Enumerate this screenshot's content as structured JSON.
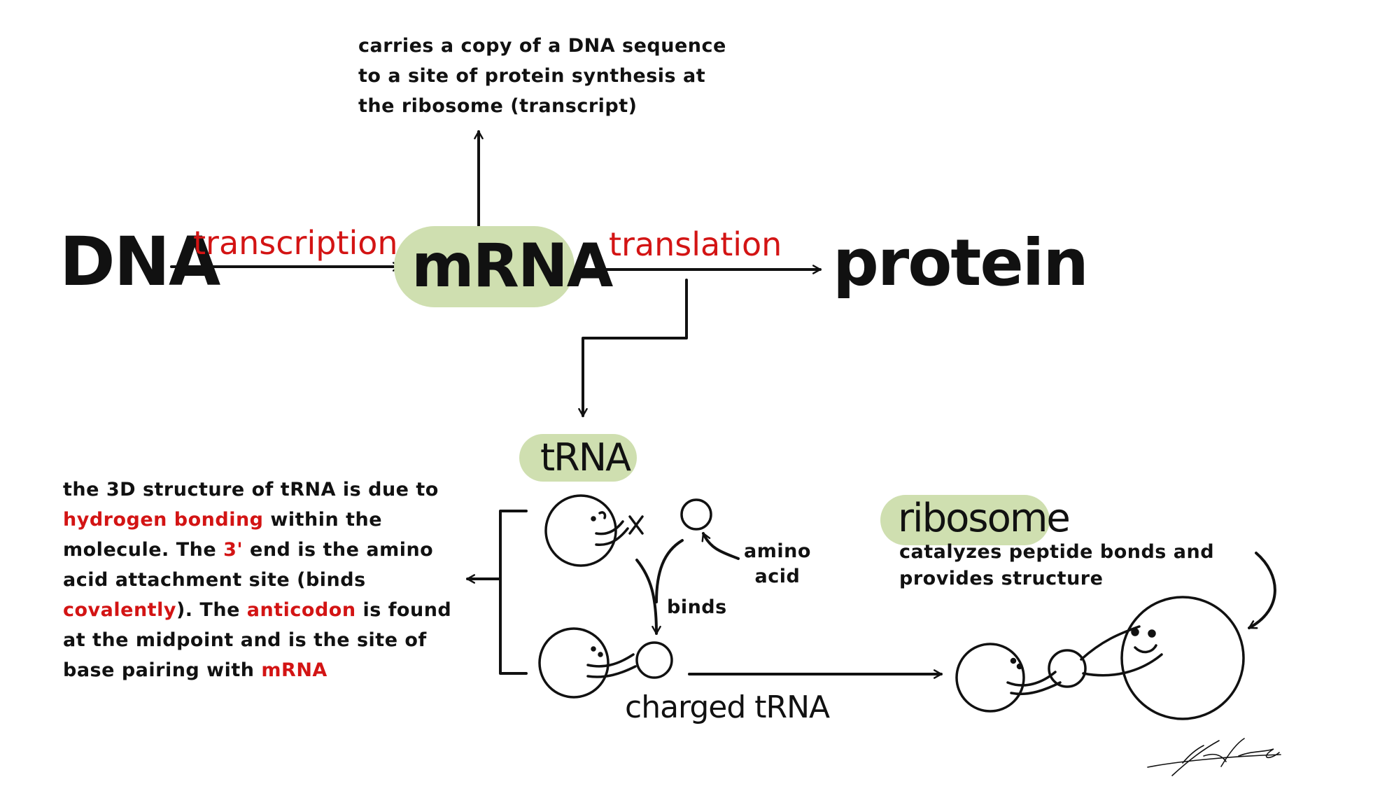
{
  "nodes": {
    "dna": "DNA",
    "mrna": "mRNA",
    "protein": "protein",
    "trna": "tRNA",
    "ribosome": "ribosome",
    "charged_trna": "charged tRNA"
  },
  "edges": {
    "transcription": "transcription",
    "translation": "translation",
    "binds": "binds"
  },
  "labels": {
    "amino_acid_line1": "amino",
    "amino_acid_line2": "acid"
  },
  "notes": {
    "mrna_lines": [
      "carries a copy of a DNA sequence",
      "to a site of protein synthesis at",
      "the ribosome (transcript)"
    ],
    "ribosome_lines": [
      "catalyzes peptide bonds and",
      "provides structure"
    ],
    "trna": {
      "l1": "the 3D structure of tRNA is due to",
      "l2_red": "hydrogen bonding",
      "l2": " within the",
      "l3a": "molecule. The ",
      "l3_red": "3'",
      "l3b": " end is the amino",
      "l4": "acid attachment site (binds",
      "l5_red": "covalently",
      "l5a": "). The ",
      "l5_red2": "anticodon",
      "l5b": " is found",
      "l6": "at the midpoint and is the site of",
      "l7a": "base pairing with ",
      "l7_red": "mRNA"
    }
  },
  "colors": {
    "highlight": "#cfdfb0",
    "accent_red": "#d31414",
    "ink": "#111111"
  }
}
